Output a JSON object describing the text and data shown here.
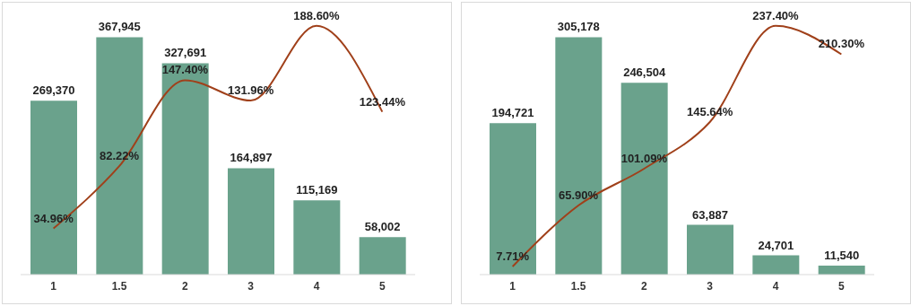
{
  "chart_data": [
    {
      "type": "bar",
      "categories": [
        "1",
        "1.5",
        "2",
        "3",
        "4",
        "5"
      ],
      "series": [
        {
          "color": "#6aa28c",
          "values": [
            269370,
            367945,
            327691,
            164897,
            115169,
            58002
          ],
          "value_labels": [
            "269,370",
            "367,945",
            "327,691",
            "164,897",
            "115,169",
            "58,002"
          ]
        },
        {
          "type": "line",
          "axis": "y2",
          "color": "#a0401a",
          "values": [
            34.96,
            82.22,
            147.4,
            131.96,
            188.6,
            123.44
          ],
          "value_labels": [
            "34.96%",
            "82.22%",
            "147.40%",
            "131.96%",
            "188.60%",
            "123.44%"
          ]
        }
      ]
    },
    {
      "type": "bar",
      "categories": [
        "1",
        "1.5",
        "2",
        "3",
        "4",
        "5"
      ],
      "series": [
        {
          "color": "#6aa28c",
          "values": [
            194721,
            305178,
            246504,
            63887,
            24701,
            11540
          ],
          "value_labels": [
            "194,721",
            "305,178",
            "246,504",
            "63,887",
            "24,701",
            "11,540"
          ]
        },
        {
          "type": "line",
          "axis": "y2",
          "color": "#a0401a",
          "values": [
            7.71,
            65.9,
            101.09,
            145.64,
            237.4,
            210.3
          ],
          "value_labels": [
            "7.71%",
            "65.90%",
            "101.09%",
            "145.64%",
            "237.40%",
            "210.30%"
          ]
        }
      ]
    }
  ]
}
